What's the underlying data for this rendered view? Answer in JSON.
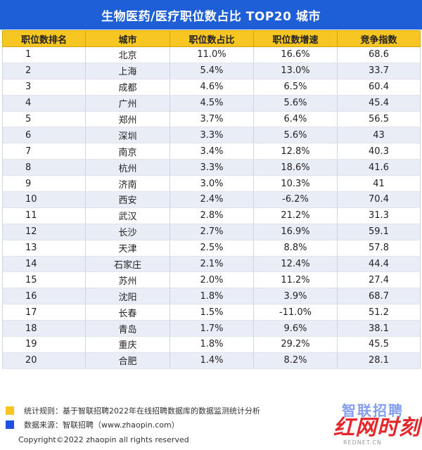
{
  "title": "生物医药/医疗职位数占比 TOP20 城市",
  "headers": [
    "职位数排名",
    "城市",
    "职位数占比",
    "职位数增速",
    "竞争指数"
  ],
  "rows": [
    {
      "rank": "1",
      "city": "北京",
      "share": "11.0%",
      "growth": "16.6%",
      "index": "68.6"
    },
    {
      "rank": "2",
      "city": "上海",
      "share": "5.4%",
      "growth": "13.0%",
      "index": "33.7"
    },
    {
      "rank": "3",
      "city": "成都",
      "share": "4.6%",
      "growth": "6.5%",
      "index": "60.4"
    },
    {
      "rank": "4",
      "city": "广州",
      "share": "4.5%",
      "growth": "5.6%",
      "index": "45.4"
    },
    {
      "rank": "5",
      "city": "郑州",
      "share": "3.7%",
      "growth": "6.4%",
      "index": "56.5"
    },
    {
      "rank": "6",
      "city": "深圳",
      "share": "3.3%",
      "growth": "5.6%",
      "index": "43"
    },
    {
      "rank": "7",
      "city": "南京",
      "share": "3.4%",
      "growth": "12.8%",
      "index": "40.3"
    },
    {
      "rank": "8",
      "city": "杭州",
      "share": "3.3%",
      "growth": "18.6%",
      "index": "41.6"
    },
    {
      "rank": "9",
      "city": "济南",
      "share": "3.0%",
      "growth": "10.3%",
      "index": "41"
    },
    {
      "rank": "10",
      "city": "西安",
      "share": "2.4%",
      "growth": "-6.2%",
      "index": "70.4"
    },
    {
      "rank": "11",
      "city": "武汉",
      "share": "2.8%",
      "growth": "21.2%",
      "index": "31.3"
    },
    {
      "rank": "12",
      "city": "长沙",
      "share": "2.7%",
      "growth": "16.9%",
      "index": "59.1"
    },
    {
      "rank": "13",
      "city": "天津",
      "share": "2.5%",
      "growth": "8.8%",
      "index": "57.8"
    },
    {
      "rank": "14",
      "city": "石家庄",
      "share": "2.1%",
      "growth": "12.4%",
      "index": "44.4"
    },
    {
      "rank": "15",
      "city": "苏州",
      "share": "2.0%",
      "growth": "11.2%",
      "index": "27.4"
    },
    {
      "rank": "16",
      "city": "沈阳",
      "share": "1.8%",
      "growth": "3.9%",
      "index": "68.7"
    },
    {
      "rank": "17",
      "city": "长春",
      "share": "1.5%",
      "growth": "-11.0%",
      "index": "51.2"
    },
    {
      "rank": "18",
      "city": "青岛",
      "share": "1.7%",
      "growth": "9.6%",
      "index": "38.1"
    },
    {
      "rank": "19",
      "city": "重庆",
      "share": "1.8%",
      "growth": "29.2%",
      "index": "45.5"
    },
    {
      "rank": "20",
      "city": "合肥",
      "share": "1.4%",
      "growth": "8.2%",
      "index": "28.1"
    }
  ],
  "notes": {
    "rule": "统计规则：基于智联招聘2022年在线招聘数据库的数据监测统计分析",
    "source": "数据来源：智联招聘（www.zhaopin.com）"
  },
  "brand_logo": "智联招聘",
  "watermark": {
    "main": "红网时刻",
    "sub": "REDNET.CN"
  },
  "copyright": "Copyright©2022 zhaopin all rights reserved",
  "colors": {
    "header_blue": "#1e5fd8",
    "header_yellow": "#f7c623",
    "stripe": "#e9eef6",
    "note_blue": "#1e50e0"
  }
}
